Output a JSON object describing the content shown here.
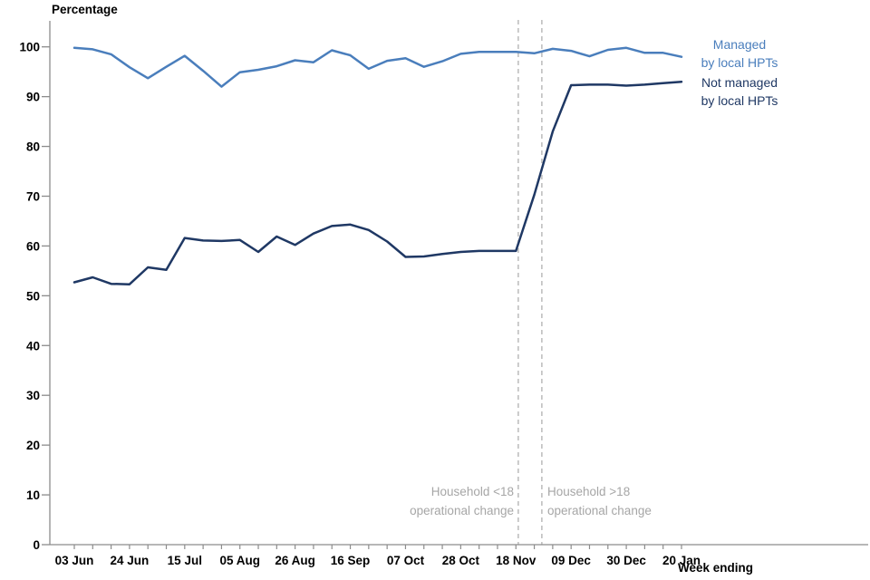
{
  "title": "Percentage",
  "x_axis_title": "Week ending",
  "legend": {
    "managed_line1": "Managed",
    "managed_line2": "by local HPTs",
    "not_managed_line1": "Not managed",
    "not_managed_line2": "by local HPTs"
  },
  "annotations": {
    "left_line1": "Household <18",
    "left_line2": "operational change",
    "right_line1": "Household >18",
    "right_line2": "operational change"
  },
  "colors": {
    "managed": "#4a7ebc",
    "not_managed": "#1f3864",
    "annotation": "#a6a6a6",
    "dashed_line": "#b0b0b0",
    "axis": "#8c8c8c",
    "tick_text": "#000000"
  },
  "chart_data": {
    "type": "line",
    "title": "Percentage",
    "xlabel": "Week ending",
    "ylabel": "Percentage",
    "ylim": [
      0,
      100
    ],
    "y_ticks": [
      0,
      10,
      20,
      30,
      40,
      50,
      60,
      70,
      80,
      90,
      100
    ],
    "x_is_weekly": true,
    "n_points": 34,
    "x_tick_labels": [
      "03 Jun",
      "24 Jun",
      "15 Jul",
      "05 Aug",
      "26 Aug",
      "16 Sep",
      "07 Oct",
      "28 Oct",
      "18 Nov",
      "09 Dec",
      "30 Dec",
      "20 Jan"
    ],
    "x_label_every": 3,
    "legend_position": "right-of-line-end",
    "grid": false,
    "series": [
      {
        "name": "Managed by local HPTs",
        "color": "#4a7ebc",
        "values": [
          99.8,
          99.5,
          98.5,
          95.9,
          93.7,
          96.0,
          98.2,
          95.2,
          92.0,
          94.9,
          95.4,
          96.1,
          97.3,
          96.9,
          99.3,
          98.3,
          95.6,
          97.2,
          97.7,
          96.0,
          97.1,
          98.6,
          99.0,
          99.0,
          99.0,
          98.7,
          99.6,
          99.2,
          98.1,
          99.4,
          99.8,
          98.8,
          98.8,
          98.0
        ]
      },
      {
        "name": "Not managed by local HPTs",
        "color": "#1f3864",
        "values": [
          52.7,
          53.7,
          52.4,
          52.3,
          55.7,
          55.2,
          61.6,
          61.1,
          61.0,
          61.2,
          58.8,
          61.9,
          60.2,
          62.5,
          64.0,
          64.3,
          63.2,
          60.9,
          57.8,
          57.9,
          58.4,
          58.8,
          59.0,
          59.0,
          59.0,
          70.3,
          83.0,
          92.3,
          92.4,
          92.4,
          92.2,
          92.4,
          92.7,
          93.0
        ]
      }
    ],
    "vlines": [
      {
        "at_week_index": 24.13,
        "label": "Household <18 operational change"
      },
      {
        "at_week_index": 25.41,
        "label": "Household >18 operational change"
      }
    ]
  }
}
